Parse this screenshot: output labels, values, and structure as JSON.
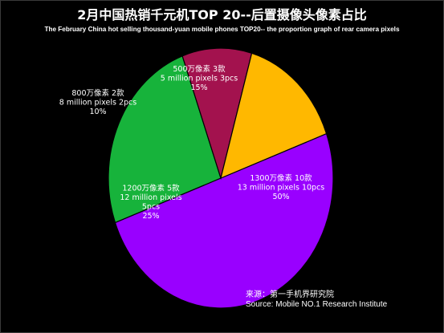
{
  "page": {
    "title": "2月中国热销千元机TOP 20--后置摄像头像素占比",
    "subtitle": "The February China hot selling thousand-yuan mobile phones TOP20-- the proportion graph of rear camera pixels",
    "source_cn": "来源：第一手机界研究院",
    "source_en": "Source: Mobile NO.1 Research Institute"
  },
  "chart_data": {
    "type": "pie",
    "title": "2月中国热销千元机TOP 20--后置摄像头像素占比",
    "subtitle": "The February China hot selling thousand-yuan mobile phones TOP20-- the proportion graph of rear camera pixels",
    "slices": [
      {
        "key": "s1300",
        "value": 50,
        "color": "#9900ff",
        "label_color": "#ffffff",
        "lines": [
          "1300万像素 10款",
          "13 million pixels 10pcs",
          "50%"
        ]
      },
      {
        "key": "s1200",
        "value": 25,
        "color": "#17b33b",
        "label_color": "#ffffff",
        "lines": [
          "1200万像素 5款",
          "12 million pixels",
          "5pcs",
          "25%"
        ]
      },
      {
        "key": "s800",
        "value": 10,
        "color": "#a3124e",
        "label_color": "#ffffff",
        "lines": [
          "800万像素 2款",
          "8 million pixels 2pcs",
          "10%"
        ]
      },
      {
        "key": "s500",
        "value": 15,
        "color": "#ffb800",
        "label_color": "#ffffff",
        "lines": [
          "500万像素 3款",
          "5 million pixels 3pcs",
          "15%"
        ]
      }
    ]
  }
}
